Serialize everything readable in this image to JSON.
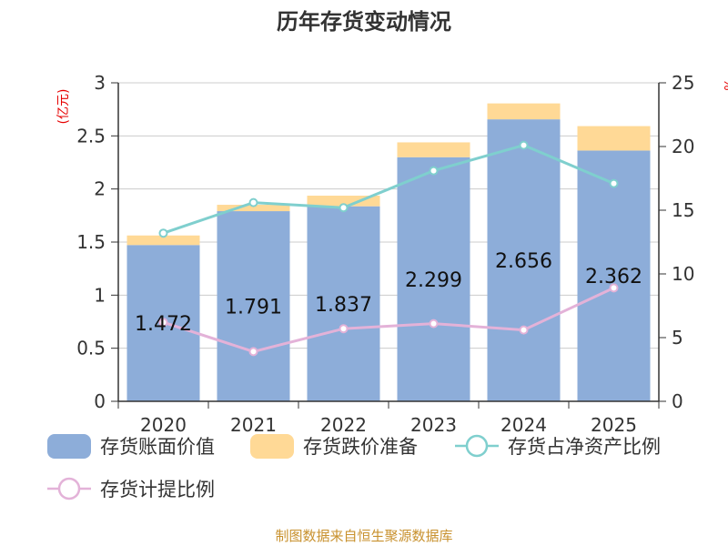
{
  "chart_data": {
    "type": "bar",
    "title": "历年存货变动情况",
    "left_unit": "(亿元)",
    "right_unit": "%",
    "categories": [
      "2020",
      "2021",
      "2022",
      "2023",
      "2024",
      "2025"
    ],
    "stacked": true,
    "ylim": [
      0,
      3
    ],
    "y_ticks": [
      "0",
      "0.5",
      "1",
      "1.5",
      "2",
      "2.5",
      "3"
    ],
    "y2lim": [
      0,
      25
    ],
    "y2_ticks": [
      "0",
      "5",
      "10",
      "15",
      "20",
      "25"
    ],
    "grid": true,
    "legend_position": "bottom",
    "series": [
      {
        "name": "存货账面价值",
        "kind": "bar",
        "axis": "left",
        "color": "#8dadd9",
        "values": [
          1.472,
          1.791,
          1.837,
          2.299,
          2.656,
          2.362
        ],
        "labels": [
          "1.472",
          "1.791",
          "1.837",
          "2.299",
          "2.656",
          "2.362"
        ]
      },
      {
        "name": "存货跌价准备",
        "kind": "bar",
        "axis": "left",
        "color": "#ffd996",
        "values": [
          0.09,
          0.06,
          0.1,
          0.14,
          0.15,
          0.23
        ]
      },
      {
        "name": "存货占净资产比例",
        "kind": "line",
        "axis": "right",
        "color": "#7fcfce",
        "values": [
          13.2,
          15.6,
          15.2,
          18.1,
          20.1,
          17.1
        ]
      },
      {
        "name": "存货计提比例",
        "kind": "line",
        "axis": "right",
        "color": "#e3b2d8",
        "values": [
          6.2,
          3.9,
          5.7,
          6.1,
          5.6,
          8.9
        ]
      }
    ],
    "source": "制图数据来自恒生聚源数据库"
  }
}
